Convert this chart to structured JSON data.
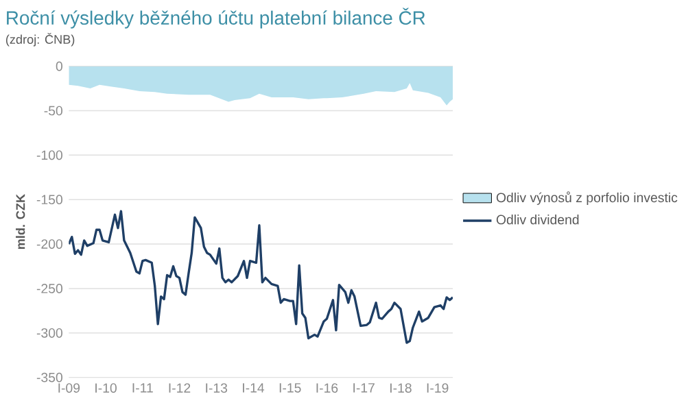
{
  "chart_data": {
    "type": "line",
    "title": "Roční výsledky běžného účtu platební bilance ČR",
    "subtitle": "(zdroj: ČNB)",
    "ylabel": "mld. CZK",
    "xlim": [
      "2009-01",
      "2019-06"
    ],
    "ylim": [
      -350,
      0
    ],
    "xticks": [
      {
        "value": "2009-01",
        "label": "I-09"
      },
      {
        "value": "2010-01",
        "label": "I-10"
      },
      {
        "value": "2011-01",
        "label": "I-11"
      },
      {
        "value": "2012-01",
        "label": "I-12"
      },
      {
        "value": "2013-01",
        "label": "I-13"
      },
      {
        "value": "2014-01",
        "label": "I-14"
      },
      {
        "value": "2015-01",
        "label": "I-15"
      },
      {
        "value": "2016-01",
        "label": "I-16"
      },
      {
        "value": "2017-01",
        "label": "I-17"
      },
      {
        "value": "2018-01",
        "label": "I-18"
      },
      {
        "value": "2019-01",
        "label": "I-19"
      }
    ],
    "yticks": [
      0,
      -50,
      -100,
      -150,
      -200,
      -250,
      -300,
      -350
    ],
    "grid": "y",
    "legend": "right",
    "series": [
      {
        "name": "Odliv výnosů z porfolio investic",
        "type": "area",
        "color": "#b7e1ee",
        "x": [
          "2009-01",
          "2009-04",
          "2009-08",
          "2009-11",
          "2010-03",
          "2010-07",
          "2010-12",
          "2011-05",
          "2011-09",
          "2012-04",
          "2012-11",
          "2013-05",
          "2013-07",
          "2013-12",
          "2014-03",
          "2014-07",
          "2015-02",
          "2015-07",
          "2015-12",
          "2016-01",
          "2016-06",
          "2017-01",
          "2017-05",
          "2017-11",
          "2018-03",
          "2018-04",
          "2018-05",
          "2018-10",
          "2019-02",
          "2019-04",
          "2019-05",
          "2019-06"
        ],
        "values": [
          -21,
          -22,
          -25,
          -21,
          -23,
          -25,
          -28,
          -29,
          -31,
          -32,
          -32,
          -40,
          -38,
          -36,
          -31,
          -35,
          -35,
          -37,
          -36,
          -36,
          -35,
          -31,
          -28,
          -29,
          -25,
          -19,
          -27,
          -30,
          -35,
          -44,
          -40,
          -37
        ]
      },
      {
        "name": "Odliv dividend",
        "color": "#1f3f66",
        "x": [
          "2009-01",
          "2009-02",
          "2009-03",
          "2009-04",
          "2009-05",
          "2009-06",
          "2009-07",
          "2009-09",
          "2009-10",
          "2009-11",
          "2009-12",
          "2010-02",
          "2010-04",
          "2010-05",
          "2010-06",
          "2010-07",
          "2010-09",
          "2010-11",
          "2010-12",
          "2011-01",
          "2011-02",
          "2011-04",
          "2011-05",
          "2011-06",
          "2011-07",
          "2011-08",
          "2011-09",
          "2011-10",
          "2011-11",
          "2011-12",
          "2012-01",
          "2012-02",
          "2012-03",
          "2012-04",
          "2012-05",
          "2012-06",
          "2012-08",
          "2012-09",
          "2012-10",
          "2012-11",
          "2013-01",
          "2013-02",
          "2013-03",
          "2013-04",
          "2013-05",
          "2013-06",
          "2013-08",
          "2013-10",
          "2013-11",
          "2013-12",
          "2014-02",
          "2014-03",
          "2014-04",
          "2014-05",
          "2014-07",
          "2014-09",
          "2014-10",
          "2014-11",
          "2015-01",
          "2015-02",
          "2015-03",
          "2015-04",
          "2015-05",
          "2015-06",
          "2015-07",
          "2015-09",
          "2015-10",
          "2015-12",
          "2016-01",
          "2016-03",
          "2016-04",
          "2016-05",
          "2016-06",
          "2016-07",
          "2016-08",
          "2016-09",
          "2016-10",
          "2016-12",
          "2017-02",
          "2017-03",
          "2017-05",
          "2017-06",
          "2017-07",
          "2017-09",
          "2017-10",
          "2017-11",
          "2018-01",
          "2018-03",
          "2018-04",
          "2018-05",
          "2018-07",
          "2018-08",
          "2018-10",
          "2018-12",
          "2019-02",
          "2019-03",
          "2019-04",
          "2019-05",
          "2019-06"
        ],
        "values": [
          -200,
          -192,
          -211,
          -207,
          -212,
          -196,
          -202,
          -199,
          -184,
          -184,
          -196,
          -198,
          -167,
          -182,
          -163,
          -196,
          -210,
          -231,
          -233,
          -219,
          -218,
          -221,
          -247,
          -290,
          -259,
          -262,
          -235,
          -237,
          -225,
          -236,
          -238,
          -254,
          -257,
          -233,
          -210,
          -170,
          -182,
          -203,
          -210,
          -212,
          -222,
          -205,
          -238,
          -243,
          -240,
          -243,
          -236,
          -219,
          -238,
          -219,
          -221,
          -179,
          -243,
          -238,
          -245,
          -247,
          -266,
          -262,
          -264,
          -264,
          -290,
          -224,
          -278,
          -283,
          -306,
          -302,
          -304,
          -287,
          -284,
          -263,
          -297,
          -246,
          -250,
          -254,
          -266,
          -252,
          -259,
          -292,
          -291,
          -288,
          -266,
          -283,
          -284,
          -276,
          -273,
          -266,
          -273,
          -311,
          -309,
          -294,
          -276,
          -287,
          -283,
          -271,
          -269,
          -273,
          -260,
          -263,
          -260
        ]
      }
    ]
  }
}
